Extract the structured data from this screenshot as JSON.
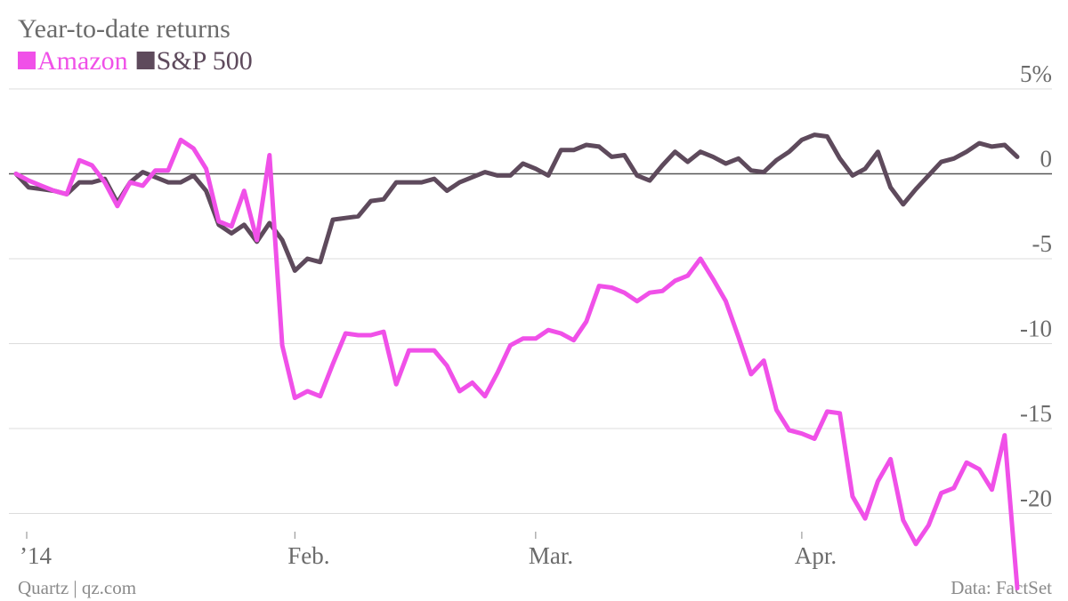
{
  "chart_data": {
    "type": "line",
    "title": "Year-to-date returns",
    "source": "Data: FactSet",
    "credit": "Quartz | qz.com",
    "categories": [
      "’14",
      null,
      null,
      null,
      null,
      null,
      null,
      null,
      null,
      null,
      null,
      null,
      null,
      null,
      null,
      null,
      null,
      null,
      null,
      null,
      null,
      null,
      "Feb.",
      null,
      null,
      null,
      null,
      null,
      null,
      null,
      null,
      null,
      null,
      null,
      null,
      null,
      null,
      null,
      null,
      null,
      null,
      "Mar.",
      null,
      null,
      null,
      null,
      null,
      null,
      null,
      null,
      null,
      null,
      null,
      null,
      null,
      null,
      null,
      null,
      null,
      null,
      null,
      null,
      "Apr.",
      null,
      null,
      null,
      null,
      null,
      null,
      null,
      null,
      null,
      null,
      null,
      null,
      null,
      null,
      null,
      null,
      null
    ],
    "series": [
      {
        "name": "Amazon",
        "color": "#f050e8",
        "values": [
          0,
          -0.4,
          -0.7,
          -1.0,
          -1.2,
          0.8,
          0.5,
          -0.5,
          -1.9,
          -0.5,
          -0.7,
          0.2,
          0.2,
          2.0,
          1.5,
          0.3,
          -2.8,
          -3.1,
          -1.0,
          -3.9,
          1.1,
          -10.1,
          -13.2,
          -12.8,
          -13.1,
          -11.2,
          -9.4,
          -9.5,
          -9.5,
          -9.3,
          -12.4,
          -10.4,
          -10.4,
          -10.4,
          -11.3,
          -12.8,
          -12.3,
          -13.1,
          -11.7,
          -10.1,
          -9.7,
          -9.7,
          -9.2,
          -9.4,
          -9.8,
          -8.7,
          -6.6,
          -6.7,
          -7.0,
          -7.5,
          -7.0,
          -6.9,
          -6.3,
          -6.0,
          -5.0,
          -6.2,
          -7.5,
          -9.6,
          -11.8,
          -11.0,
          -13.9,
          -15.1,
          -15.3,
          -15.6,
          -14.0,
          -14.1,
          -19.0,
          -20.3,
          -18.1,
          -16.8,
          -20.4,
          -21.8,
          -20.7,
          -18.8,
          -18.5,
          -17.0,
          -17.4,
          -18.6,
          -15.4,
          -24.4
        ]
      },
      {
        "name": "S&P 500",
        "color": "#5e4a5c",
        "values": [
          0,
          -0.8,
          -0.9,
          -1.0,
          -1.2,
          -0.5,
          -0.5,
          -0.3,
          -1.7,
          -0.5,
          0.1,
          -0.2,
          -0.5,
          -0.5,
          -0.1,
          -1.0,
          -3.0,
          -3.5,
          -3.0,
          -4.0,
          -2.9,
          -3.9,
          -5.7,
          -5.0,
          -5.2,
          -2.7,
          -2.6,
          -2.5,
          -1.6,
          -1.5,
          -0.5,
          -0.5,
          -0.5,
          -0.3,
          -1.0,
          -0.5,
          -0.2,
          0.1,
          -0.1,
          -0.1,
          0.6,
          0.3,
          -0.1,
          1.4,
          1.4,
          1.7,
          1.6,
          1.0,
          1.1,
          -0.1,
          -0.4,
          0.5,
          1.3,
          0.7,
          1.3,
          1.0,
          0.6,
          0.9,
          0.2,
          0.1,
          0.8,
          1.3,
          2.0,
          2.3,
          2.2,
          0.9,
          -0.1,
          0.3,
          1.3,
          -0.8,
          -1.8,
          -0.9,
          -0.1,
          0.7,
          0.9,
          1.3,
          1.8,
          1.6,
          1.7,
          1.0
        ]
      }
    ],
    "ylim": [
      -24.5,
      5
    ],
    "yticks": [
      {
        "value": 5,
        "label": "5%"
      },
      0,
      -5,
      -10,
      -15,
      -20
    ],
    "grid": true
  }
}
